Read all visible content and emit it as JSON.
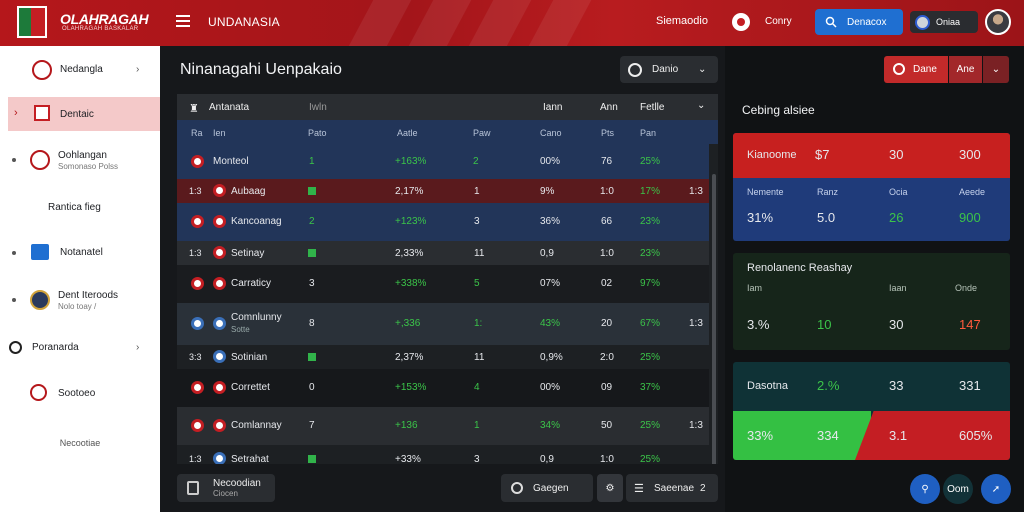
{
  "header": {
    "logo_text": "OLAHRAGAH",
    "logo_sub": "OLAHRAGAH BASKALAR",
    "section": "UNDANASIA",
    "right_text": "Siemaodio",
    "company": "Conry",
    "search_label": "Denacox",
    "profile_label": "Oniaa"
  },
  "sidebar": {
    "items": [
      {
        "label": "Nedangla"
      },
      {
        "label": "Dentaic"
      },
      {
        "label": "Oohlangan",
        "sub": "Somonaso Polss"
      },
      {
        "label": "Rantica fieg"
      },
      {
        "label": "Notanatel"
      },
      {
        "label": "Dent Iteroods",
        "sub": "Nolo toay /"
      },
      {
        "label": "Poranarda"
      },
      {
        "label": "Sootoeo"
      }
    ],
    "footer": "Necootiae"
  },
  "main": {
    "title": "Ninanagahi Uenpakaio",
    "filter_label": "Danio",
    "table_title": "Antanata",
    "table_head": [
      "Iwln",
      "Iann",
      "Ann",
      "Fetlle"
    ],
    "columns": [
      "Ra",
      "Ien",
      "Pato",
      "Aatle",
      "Paw",
      "Cano",
      "Pts",
      "Pan"
    ],
    "rows": [
      {
        "rank": "",
        "team": "Monteol",
        "p": "1",
        "diff": "+163%",
        "w": "2",
        "pct": "00%",
        "pts": "76",
        "form": "25%",
        "tail": ""
      },
      {
        "rank": "1:3",
        "team": "Aubaag",
        "p": "",
        "diff": "2,17%",
        "w": "1",
        "pct": "9%",
        "pts": "1:0",
        "form": "17%",
        "tail": "1:3"
      },
      {
        "rank": "",
        "team": "Kancoanag",
        "p": "2",
        "diff": "+123%",
        "w": "3",
        "pct": "36%",
        "pts": "66",
        "form": "23%",
        "tail": ""
      },
      {
        "rank": "1:3",
        "team": "Setinay",
        "p": "",
        "diff": "2,33%",
        "w": "11",
        "pct": "0,9",
        "pts": "1:0",
        "form": "23%",
        "tail": "1:3"
      },
      {
        "rank": "",
        "team": "Carraticy",
        "p": "3",
        "diff": "+338%",
        "w": "5",
        "pct": "07%",
        "pts": "02",
        "form": "97%",
        "tail": ""
      },
      {
        "rank": "",
        "team": "Comnlunny",
        "sub": "Sotte",
        "p": "8",
        "diff": "+,336",
        "w": "1:",
        "pct": "43%",
        "pts": "20",
        "form": "67%",
        "tail": "1:3"
      },
      {
        "rank": "3:3",
        "team": "Sotinian",
        "p": "",
        "diff": "2,37%",
        "w": "11",
        "pct": "0,9%",
        "pts": "2:0",
        "form": "25%",
        "tail": "1:3"
      },
      {
        "rank": "",
        "team": "Correttet",
        "p": "0",
        "diff": "+153%",
        "w": "4",
        "pct": "00%",
        "pts": "09",
        "form": "37%",
        "tail": ""
      },
      {
        "rank": "",
        "team": "Comlannay",
        "p": "7",
        "diff": "+136",
        "w": "1",
        "pct": "34%",
        "pts": "50",
        "form": "25%",
        "tail": "1:3"
      },
      {
        "rank": "1:3",
        "team": "Setrahat",
        "p": "",
        "diff": "+33%",
        "w": "3",
        "pct": "0,9",
        "pts": "1:0",
        "form": "25%",
        "tail": ""
      }
    ],
    "bottom_left": "Necoodian",
    "bottom_left_sub": "Ciocen",
    "bottom_mid": "Gaegen",
    "bottom_right": "Saeenae",
    "bottom_right_val": "2"
  },
  "right": {
    "btn_primary": "Dane",
    "btn_secondary": "Ane",
    "section_title": "Cebing alsiee",
    "card1": {
      "team": "Kianoome",
      "v1": "$7",
      "v2": "30",
      "v3": "300",
      "heads": [
        "Nemente",
        "Ranz",
        "Ocia",
        "Aeede"
      ],
      "vals": [
        "31%",
        "5.0",
        "26",
        "900"
      ]
    },
    "card2": {
      "title": "Renolanenc Reashay",
      "heads": [
        "Iam",
        "Iaan",
        "Onde"
      ],
      "vals": [
        "3.%",
        "10",
        "30",
        "147"
      ]
    },
    "card3": {
      "label": "Dasotna",
      "pct": "2.%",
      "v1": "33",
      "v2": "331",
      "b1": "33%",
      "b2": "334",
      "b3": "3.1",
      "b4": "605%"
    },
    "fab_label": "Oom"
  },
  "colors": {
    "brand_red": "#b5171b",
    "accent_blue": "#1f6fd1",
    "positive": "#3bc449"
  }
}
